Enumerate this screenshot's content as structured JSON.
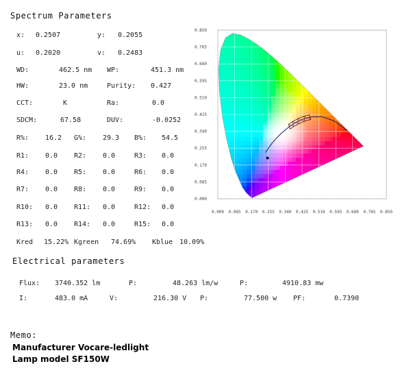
{
  "spectrum": {
    "heading": "Spectrum Parameters",
    "rows": [
      [
        [
          "x:",
          "0.2507"
        ],
        [
          "y:",
          "0.2055"
        ]
      ],
      [
        [
          "u:",
          "0.2020"
        ],
        [
          "v:",
          "0.2483"
        ]
      ],
      [
        [
          "WD:",
          "462.5 nm"
        ],
        [
          "WP:",
          "451.3 nm"
        ]
      ],
      [
        [
          "HW:",
          "23.0 nm"
        ],
        [
          "Purity:",
          "0.427"
        ]
      ],
      [
        [
          "CCT:",
          "K"
        ],
        [
          "Ra:",
          "0.0"
        ]
      ],
      [
        [
          "SDCM:",
          "67.58"
        ],
        [
          "DUV:",
          "-0.0252"
        ]
      ],
      [
        [
          "R%:",
          "16.2"
        ],
        [
          "G%:",
          "29.3"
        ],
        [
          "B%:",
          "54.5"
        ]
      ],
      [
        [
          "R1:",
          "0.0"
        ],
        [
          "R2:",
          "0.0"
        ],
        [
          "R3:",
          "0.0"
        ]
      ],
      [
        [
          "R4:",
          "0.0"
        ],
        [
          "R5:",
          "0.0"
        ],
        [
          "R6:",
          "0.0"
        ]
      ],
      [
        [
          "R7:",
          "0.0"
        ],
        [
          "R8:",
          "0.0"
        ],
        [
          "R9:",
          "0.0"
        ]
      ],
      [
        [
          "R10:",
          "0.0"
        ],
        [
          "R11:",
          "0.0"
        ],
        [
          "R12:",
          "0.0"
        ]
      ],
      [
        [
          "R13:",
          "0.0"
        ],
        [
          "R14:",
          "0.0"
        ],
        [
          "R15:",
          "0.0"
        ]
      ],
      [
        [
          "Kred",
          "15.22%"
        ],
        [
          "Kgreen",
          "74.69%"
        ],
        [
          "Kblue",
          "10.09%"
        ]
      ]
    ]
  },
  "electrical": {
    "heading": "Electrical parameters",
    "row1": [
      [
        "Flux:",
        "3740.352 lm"
      ],
      [
        "P:",
        "48.263 lm/w"
      ],
      [
        "P:",
        "4910.83 mw"
      ]
    ],
    "row2": [
      [
        "I:",
        "483.0 mA"
      ],
      [
        "V:",
        "216.30 V"
      ],
      [
        "P:",
        "77.500 w"
      ],
      [
        "PF:",
        "0.7390"
      ]
    ]
  },
  "memo": {
    "heading": "Memo:",
    "lines": [
      "Manufacturer Vocare-ledlight",
      "Lamp model SF150W"
    ]
  },
  "chart_data": {
    "type": "scatter",
    "x_ticks": [
      "0.000",
      "0.085",
      "0.170",
      "0.255",
      "0.340",
      "0.425",
      "0.510",
      "0.595",
      "0.680",
      "0.765",
      "0.850"
    ],
    "y_ticks": [
      "0.000",
      "0.085",
      "0.170",
      "0.255",
      "0.340",
      "0.425",
      "0.510",
      "0.595",
      "0.680",
      "0.765",
      "0.850"
    ],
    "xlim": [
      0,
      0.85
    ],
    "ylim": [
      0,
      0.85
    ],
    "grid": true,
    "measured_point": {
      "x": 0.2507,
      "y": 0.2055
    },
    "spectral_locus": [
      [
        0.1741,
        0.005
      ],
      [
        0.1733,
        0.0048
      ],
      [
        0.1726,
        0.0048
      ],
      [
        0.1714,
        0.0051
      ],
      [
        0.1689,
        0.0069
      ],
      [
        0.1644,
        0.0109
      ],
      [
        0.1566,
        0.0177
      ],
      [
        0.144,
        0.0297
      ],
      [
        0.1241,
        0.0578
      ],
      [
        0.0913,
        0.1327
      ],
      [
        0.0687,
        0.2007
      ],
      [
        0.0454,
        0.295
      ],
      [
        0.0235,
        0.4127
      ],
      [
        0.0082,
        0.5384
      ],
      [
        0.0039,
        0.6548
      ],
      [
        0.0139,
        0.7502
      ],
      [
        0.0389,
        0.812
      ],
      [
        0.0743,
        0.8338
      ],
      [
        0.1142,
        0.8262
      ],
      [
        0.1547,
        0.8059
      ],
      [
        0.1929,
        0.7816
      ],
      [
        0.2296,
        0.7543
      ],
      [
        0.2658,
        0.7243
      ],
      [
        0.3016,
        0.6923
      ],
      [
        0.3373,
        0.6589
      ],
      [
        0.3731,
        0.6245
      ],
      [
        0.4087,
        0.5896
      ],
      [
        0.4441,
        0.5547
      ],
      [
        0.4788,
        0.5202
      ],
      [
        0.5125,
        0.4866
      ],
      [
        0.5448,
        0.4544
      ],
      [
        0.5752,
        0.4242
      ],
      [
        0.6029,
        0.3965
      ],
      [
        0.627,
        0.3725
      ],
      [
        0.6482,
        0.3514
      ],
      [
        0.6658,
        0.334
      ],
      [
        0.6801,
        0.3197
      ],
      [
        0.6915,
        0.3083
      ],
      [
        0.7006,
        0.2993
      ],
      [
        0.7079,
        0.292
      ],
      [
        0.714,
        0.2859
      ],
      [
        0.719,
        0.2809
      ],
      [
        0.723,
        0.277
      ],
      [
        0.726,
        0.274
      ],
      [
        0.7283,
        0.2717
      ],
      [
        0.73,
        0.27
      ],
      [
        0.7347,
        0.2653
      ]
    ],
    "planckian_locus": [
      [
        0.6528,
        0.3444
      ],
      [
        0.5857,
        0.3931
      ],
      [
        0.5267,
        0.4133
      ],
      [
        0.477,
        0.4137
      ],
      [
        0.4369,
        0.4041
      ],
      [
        0.4053,
        0.3907
      ],
      [
        0.3805,
        0.3768
      ],
      [
        0.3608,
        0.3636
      ],
      [
        0.3451,
        0.3516
      ],
      [
        0.3221,
        0.3318
      ],
      [
        0.3064,
        0.3166
      ],
      [
        0.2952,
        0.3048
      ],
      [
        0.2806,
        0.2883
      ],
      [
        0.2716,
        0.278
      ],
      [
        0.2565,
        0.2563
      ],
      [
        0.24,
        0.233
      ]
    ]
  }
}
